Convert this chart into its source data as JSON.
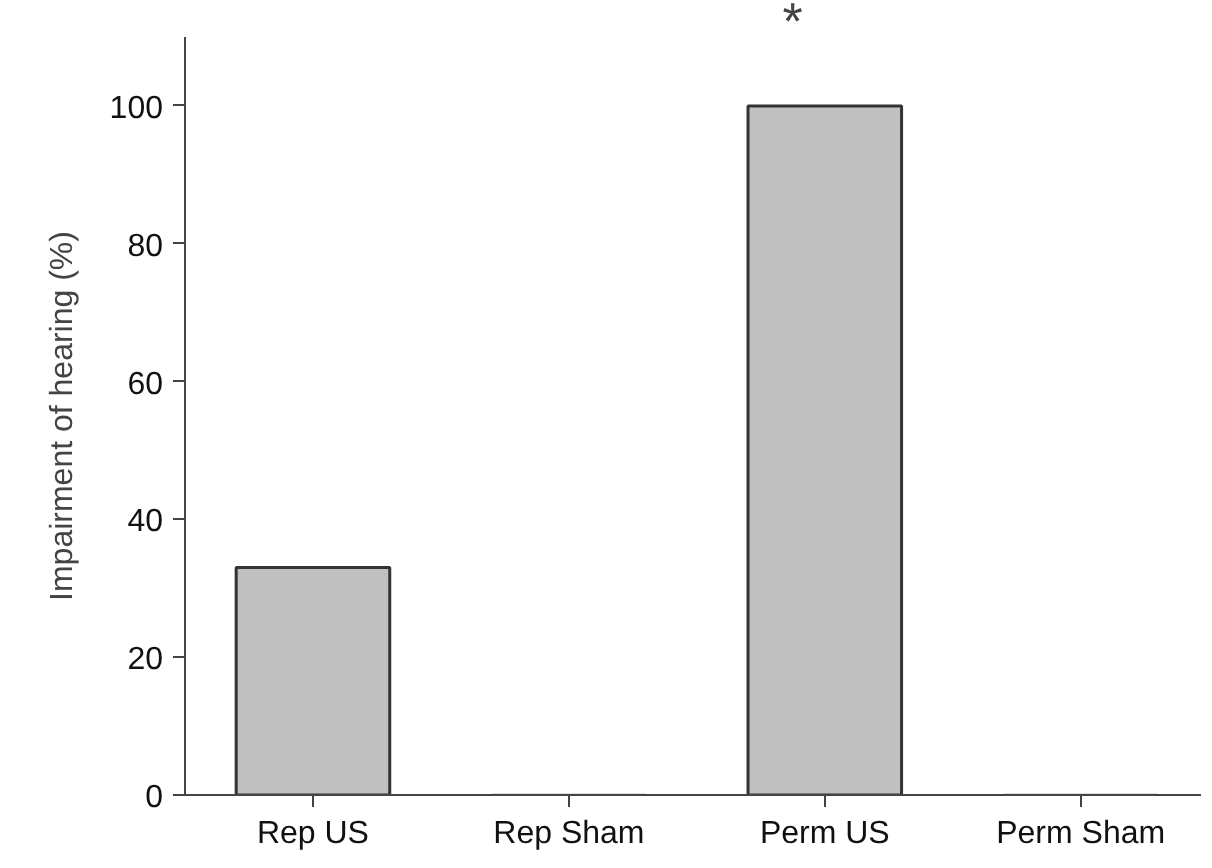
{
  "chart_data": {
    "type": "bar",
    "ylabel": "Impairment of hearing (%)",
    "categories": [
      "Rep US",
      "Rep Sham",
      "Perm US",
      "Perm Sham"
    ],
    "values": [
      33,
      0,
      100,
      0
    ],
    "color": "#c0c0c0",
    "ylim": [
      0,
      110
    ],
    "yticks": [
      0,
      20,
      40,
      60,
      80,
      100
    ],
    "grid": false,
    "annotations": [
      "*"
    ]
  }
}
